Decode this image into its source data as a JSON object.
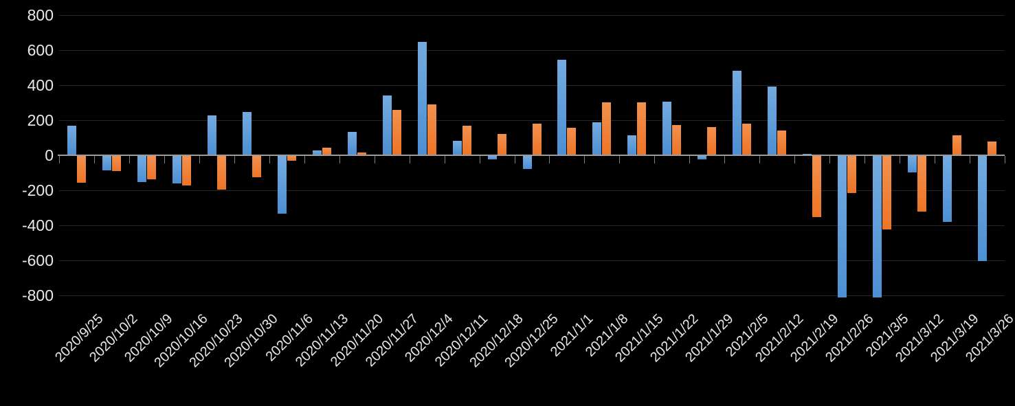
{
  "chart_data": {
    "type": "bar",
    "title": "",
    "xlabel": "",
    "ylabel": "",
    "background": "#000000",
    "grid": true,
    "legend": "none",
    "ylim": [
      -800,
      800
    ],
    "ytick_step": 200,
    "yticks": [
      800,
      600,
      400,
      200,
      0,
      -200,
      -400,
      -600,
      -800
    ],
    "categories": [
      "2020/9/25",
      "2020/10/2",
      "2020/10/9",
      "2020/10/16",
      "2020/10/23",
      "2020/10/30",
      "2020/11/6",
      "2020/11/13",
      "2020/11/20",
      "2020/11/27",
      "2020/12/4",
      "2020/12/11",
      "2020/12/18",
      "2020/12/25",
      "2021/1/1",
      "2021/1/8",
      "2021/1/15",
      "2021/1/22",
      "2021/1/29",
      "2021/2/5",
      "2021/2/12",
      "2021/2/19",
      "2021/2/26",
      "2021/3/5",
      "2021/3/12",
      "2021/3/19",
      "2021/3/26"
    ],
    "series": [
      {
        "name": "blue",
        "color": "#5B9BD5",
        "values": [
          165,
          -85,
          -150,
          -160,
          225,
          245,
          -330,
          25,
          130,
          340,
          645,
          80,
          -20,
          -75,
          545,
          185,
          110,
          305,
          -20,
          480,
          390,
          5,
          -810,
          -810,
          -95,
          -380,
          -600
        ]
      },
      {
        "name": "orange",
        "color": "#ED7D31",
        "values": [
          -155,
          -90,
          -135,
          -170,
          -195,
          -125,
          -30,
          40,
          15,
          255,
          290,
          165,
          120,
          180,
          155,
          300,
          300,
          170,
          160,
          180,
          140,
          -350,
          -215,
          -420,
          -320,
          110,
          75
        ]
      }
    ],
    "axis_colors": {
      "tick_label": "#E8E8E8",
      "gridline": "#262626",
      "zero_axis": "#9C9C9C"
    }
  }
}
